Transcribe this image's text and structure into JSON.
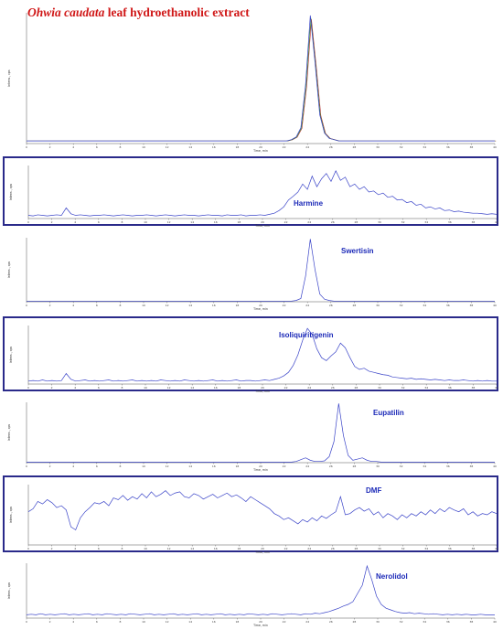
{
  "figure_title": {
    "italic": "Ohwia caudata",
    "rest": " leaf hydroethanolic extract"
  },
  "colors": {
    "trace": "#3a44c8",
    "trace2": "#c03030",
    "trace3": "#309030",
    "label": "#1c2ab8",
    "frame": "#2a2a8a",
    "title": "#d01818"
  },
  "chart_data": [
    {
      "type": "line",
      "name": "tic",
      "compound": "",
      "xlabel": "Time, min",
      "ylabel": "Intens., cps",
      "xlim": [
        0,
        40
      ],
      "x_ticks": [
        0,
        2,
        4,
        6,
        8,
        10,
        12,
        14,
        16,
        18,
        20,
        22,
        24,
        26,
        28,
        30,
        32,
        34,
        36,
        38,
        40
      ],
      "series": [
        {
          "values": [
            0.02,
            0.02,
            0.02,
            0.02,
            0.02,
            0.02,
            0.02,
            0.02,
            0.02,
            0.02,
            0.02,
            0.02,
            0.02,
            0.02,
            0.02,
            0.02,
            0.02,
            0.02,
            0.02,
            0.02,
            0.02,
            0.02,
            0.02,
            0.02,
            0.02,
            0.02,
            0.02,
            0.02,
            0.02,
            0.02,
            0.02,
            0.02,
            0.02,
            0.02,
            0.02,
            0.02,
            0.02,
            0.02,
            0.02,
            0.02,
            0.02,
            0.02,
            0.02,
            0.02,
            0.02,
            0.02,
            0.02,
            0.02,
            0.02,
            0.02,
            0.02,
            0.02,
            0.02,
            0.02,
            0.02,
            0.02,
            0.03,
            0.05,
            0.12,
            0.45,
            0.98,
            0.62,
            0.22,
            0.08,
            0.04,
            0.03,
            0.02,
            0.02,
            0.02,
            0.02,
            0.02,
            0.02,
            0.02,
            0.02,
            0.02,
            0.02,
            0.02,
            0.02,
            0.02,
            0.02,
            0.02,
            0.02,
            0.02,
            0.02,
            0.02,
            0.02,
            0.02,
            0.02,
            0.02,
            0.02,
            0.02,
            0.02,
            0.02,
            0.02,
            0.02,
            0.02,
            0.02,
            0.02,
            0.02,
            0.02
          ]
        }
      ]
    },
    {
      "type": "line",
      "name": "harmine",
      "compound": "Harmine",
      "xlabel": "Time, min",
      "ylabel": "Intens., cps",
      "xlim": [
        0,
        40
      ],
      "x_ticks": [
        0,
        2,
        4,
        6,
        8,
        10,
        12,
        14,
        16,
        18,
        20,
        22,
        24,
        26,
        28,
        30,
        32,
        34,
        36,
        38,
        40
      ],
      "series": [
        {
          "values": [
            0.06,
            0.05,
            0.07,
            0.06,
            0.05,
            0.06,
            0.07,
            0.06,
            0.2,
            0.09,
            0.06,
            0.07,
            0.06,
            0.05,
            0.06,
            0.06,
            0.07,
            0.06,
            0.05,
            0.06,
            0.07,
            0.06,
            0.05,
            0.06,
            0.06,
            0.07,
            0.06,
            0.05,
            0.06,
            0.07,
            0.06,
            0.05,
            0.06,
            0.07,
            0.06,
            0.06,
            0.05,
            0.06,
            0.07,
            0.06,
            0.06,
            0.05,
            0.07,
            0.06,
            0.06,
            0.07,
            0.05,
            0.06,
            0.06,
            0.07,
            0.06,
            0.08,
            0.1,
            0.15,
            0.22,
            0.35,
            0.42,
            0.5,
            0.65,
            0.55,
            0.8,
            0.6,
            0.75,
            0.85,
            0.7,
            0.9,
            0.72,
            0.78,
            0.6,
            0.65,
            0.55,
            0.6,
            0.5,
            0.52,
            0.45,
            0.48,
            0.4,
            0.42,
            0.35,
            0.36,
            0.3,
            0.32,
            0.25,
            0.27,
            0.2,
            0.22,
            0.18,
            0.2,
            0.15,
            0.16,
            0.13,
            0.14,
            0.12,
            0.11,
            0.1,
            0.1,
            0.09,
            0.08,
            0.09,
            0.08
          ]
        }
      ]
    },
    {
      "type": "line",
      "name": "swertisin",
      "compound": "Swertisin",
      "xlabel": "Time, min",
      "ylabel": "Intens., cps",
      "xlim": [
        0,
        40
      ],
      "x_ticks": [
        0,
        2,
        4,
        6,
        8,
        10,
        12,
        14,
        16,
        18,
        20,
        22,
        24,
        26,
        28,
        30,
        32,
        34,
        36,
        38,
        40
      ],
      "series": [
        {
          "values": [
            0.01,
            0.01,
            0.01,
            0.01,
            0.01,
            0.01,
            0.01,
            0.01,
            0.01,
            0.01,
            0.01,
            0.01,
            0.01,
            0.01,
            0.01,
            0.01,
            0.01,
            0.01,
            0.01,
            0.01,
            0.01,
            0.01,
            0.01,
            0.01,
            0.01,
            0.01,
            0.01,
            0.01,
            0.01,
            0.01,
            0.01,
            0.01,
            0.01,
            0.01,
            0.01,
            0.01,
            0.01,
            0.01,
            0.01,
            0.01,
            0.01,
            0.01,
            0.01,
            0.01,
            0.01,
            0.01,
            0.01,
            0.01,
            0.01,
            0.01,
            0.01,
            0.01,
            0.01,
            0.01,
            0.01,
            0.01,
            0.01,
            0.02,
            0.05,
            0.4,
            0.98,
            0.5,
            0.12,
            0.04,
            0.02,
            0.01,
            0.01,
            0.01,
            0.01,
            0.01,
            0.01,
            0.01,
            0.01,
            0.01,
            0.01,
            0.01,
            0.01,
            0.01,
            0.01,
            0.01,
            0.01,
            0.01,
            0.01,
            0.01,
            0.01,
            0.01,
            0.01,
            0.01,
            0.01,
            0.01,
            0.01,
            0.01,
            0.01,
            0.01,
            0.01,
            0.01,
            0.01,
            0.01,
            0.01,
            0.01
          ]
        }
      ]
    },
    {
      "type": "line",
      "name": "isoliquiritigenin",
      "compound": "Isoliquiritigenin",
      "xlabel": "Time, min",
      "ylabel": "Intens., cps",
      "xlim": [
        0,
        40
      ],
      "x_ticks": [
        0,
        2,
        4,
        6,
        8,
        10,
        12,
        14,
        16,
        18,
        20,
        22,
        24,
        26,
        28,
        30,
        32,
        34,
        36,
        38,
        40
      ],
      "series": [
        {
          "values": [
            0.05,
            0.06,
            0.05,
            0.07,
            0.05,
            0.06,
            0.05,
            0.06,
            0.18,
            0.08,
            0.05,
            0.06,
            0.07,
            0.05,
            0.06,
            0.05,
            0.06,
            0.07,
            0.05,
            0.06,
            0.05,
            0.06,
            0.07,
            0.05,
            0.06,
            0.05,
            0.06,
            0.05,
            0.07,
            0.06,
            0.05,
            0.06,
            0.05,
            0.07,
            0.06,
            0.05,
            0.06,
            0.05,
            0.06,
            0.07,
            0.05,
            0.06,
            0.05,
            0.06,
            0.07,
            0.05,
            0.06,
            0.06,
            0.05,
            0.06,
            0.07,
            0.06,
            0.08,
            0.1,
            0.14,
            0.2,
            0.32,
            0.5,
            0.75,
            0.95,
            0.85,
            0.6,
            0.45,
            0.4,
            0.48,
            0.55,
            0.7,
            0.62,
            0.45,
            0.3,
            0.25,
            0.27,
            0.22,
            0.2,
            0.18,
            0.16,
            0.15,
            0.12,
            0.11,
            0.1,
            0.09,
            0.1,
            0.08,
            0.09,
            0.08,
            0.07,
            0.08,
            0.07,
            0.06,
            0.07,
            0.06,
            0.06,
            0.07,
            0.06,
            0.05,
            0.06,
            0.05,
            0.06,
            0.05,
            0.05
          ]
        }
      ]
    },
    {
      "type": "line",
      "name": "eupatilin",
      "compound": "Eupatilin",
      "xlabel": "Time, min",
      "ylabel": "Intens., cps",
      "xlim": [
        0,
        40
      ],
      "x_ticks": [
        0,
        2,
        4,
        6,
        8,
        10,
        12,
        14,
        16,
        18,
        20,
        22,
        24,
        26,
        28,
        30,
        32,
        34,
        36,
        38,
        40
      ],
      "series": [
        {
          "values": [
            0.01,
            0.01,
            0.01,
            0.01,
            0.01,
            0.01,
            0.01,
            0.01,
            0.01,
            0.01,
            0.01,
            0.01,
            0.01,
            0.01,
            0.01,
            0.01,
            0.01,
            0.01,
            0.01,
            0.01,
            0.01,
            0.01,
            0.01,
            0.01,
            0.01,
            0.01,
            0.01,
            0.01,
            0.01,
            0.01,
            0.01,
            0.01,
            0.01,
            0.01,
            0.01,
            0.01,
            0.01,
            0.01,
            0.01,
            0.01,
            0.01,
            0.01,
            0.01,
            0.01,
            0.01,
            0.01,
            0.01,
            0.01,
            0.01,
            0.01,
            0.01,
            0.01,
            0.01,
            0.01,
            0.01,
            0.01,
            0.01,
            0.02,
            0.05,
            0.08,
            0.04,
            0.02,
            0.02,
            0.03,
            0.1,
            0.35,
            0.98,
            0.45,
            0.12,
            0.04,
            0.06,
            0.08,
            0.04,
            0.02,
            0.02,
            0.01,
            0.01,
            0.01,
            0.01,
            0.01,
            0.01,
            0.01,
            0.01,
            0.01,
            0.01,
            0.01,
            0.01,
            0.01,
            0.01,
            0.01,
            0.01,
            0.01,
            0.01,
            0.01,
            0.01,
            0.01,
            0.01,
            0.01,
            0.01,
            0.01
          ]
        }
      ]
    },
    {
      "type": "line",
      "name": "dmf",
      "compound": "DMF",
      "xlabel": "Time, min",
      "ylabel": "Intens., cps",
      "xlim": [
        0,
        40
      ],
      "x_ticks": [
        0,
        2,
        4,
        6,
        8,
        10,
        12,
        14,
        16,
        18,
        20,
        22,
        24,
        26,
        28,
        30,
        32,
        34,
        36,
        38,
        40
      ],
      "series": [
        {
          "values": [
            0.55,
            0.6,
            0.72,
            0.68,
            0.75,
            0.7,
            0.62,
            0.65,
            0.58,
            0.3,
            0.25,
            0.45,
            0.55,
            0.62,
            0.7,
            0.68,
            0.72,
            0.65,
            0.78,
            0.75,
            0.82,
            0.74,
            0.8,
            0.76,
            0.85,
            0.78,
            0.88,
            0.8,
            0.84,
            0.9,
            0.82,
            0.86,
            0.88,
            0.8,
            0.78,
            0.85,
            0.82,
            0.76,
            0.8,
            0.84,
            0.78,
            0.82,
            0.86,
            0.8,
            0.83,
            0.78,
            0.72,
            0.8,
            0.75,
            0.7,
            0.65,
            0.6,
            0.52,
            0.48,
            0.42,
            0.45,
            0.4,
            0.35,
            0.42,
            0.38,
            0.45,
            0.4,
            0.48,
            0.44,
            0.5,
            0.55,
            0.8,
            0.5,
            0.52,
            0.58,
            0.62,
            0.56,
            0.6,
            0.5,
            0.55,
            0.45,
            0.52,
            0.48,
            0.42,
            0.5,
            0.45,
            0.52,
            0.48,
            0.55,
            0.5,
            0.58,
            0.52,
            0.6,
            0.55,
            0.62,
            0.58,
            0.55,
            0.6,
            0.5,
            0.55,
            0.48,
            0.52,
            0.5,
            0.55,
            0.52
          ]
        }
      ]
    },
    {
      "type": "line",
      "name": "nerolidol",
      "compound": "Nerolidol",
      "xlabel": "Time, min",
      "ylabel": "Intens., cps",
      "xlim": [
        0,
        40
      ],
      "x_ticks": [
        0,
        2,
        4,
        6,
        8,
        10,
        12,
        14,
        16,
        18,
        20,
        22,
        24,
        26,
        28,
        30,
        32,
        34,
        36,
        38,
        40
      ],
      "series": [
        {
          "values": [
            0.06,
            0.07,
            0.06,
            0.08,
            0.06,
            0.07,
            0.06,
            0.07,
            0.08,
            0.06,
            0.07,
            0.06,
            0.07,
            0.08,
            0.06,
            0.07,
            0.06,
            0.08,
            0.07,
            0.06,
            0.07,
            0.06,
            0.08,
            0.07,
            0.06,
            0.07,
            0.08,
            0.06,
            0.07,
            0.06,
            0.07,
            0.08,
            0.06,
            0.07,
            0.06,
            0.07,
            0.08,
            0.06,
            0.07,
            0.06,
            0.07,
            0.08,
            0.06,
            0.07,
            0.06,
            0.07,
            0.06,
            0.08,
            0.07,
            0.06,
            0.07,
            0.06,
            0.08,
            0.07,
            0.06,
            0.07,
            0.08,
            0.07,
            0.06,
            0.08,
            0.07,
            0.09,
            0.08,
            0.1,
            0.12,
            0.15,
            0.18,
            0.22,
            0.25,
            0.3,
            0.45,
            0.6,
            0.95,
            0.7,
            0.4,
            0.25,
            0.18,
            0.15,
            0.12,
            0.1,
            0.09,
            0.1,
            0.08,
            0.09,
            0.08,
            0.07,
            0.08,
            0.07,
            0.06,
            0.07,
            0.06,
            0.07,
            0.06,
            0.07,
            0.06,
            0.06,
            0.07,
            0.06,
            0.06,
            0.06
          ]
        }
      ]
    }
  ],
  "compound_labels": {
    "harmine": "Harmine",
    "swertisin": "Swertisin",
    "isoliquiritigenin": "Isoliquiritigenin",
    "eupatilin": "Eupatilin",
    "dmf": "DMF",
    "nerolidol": "Nerolidol"
  }
}
